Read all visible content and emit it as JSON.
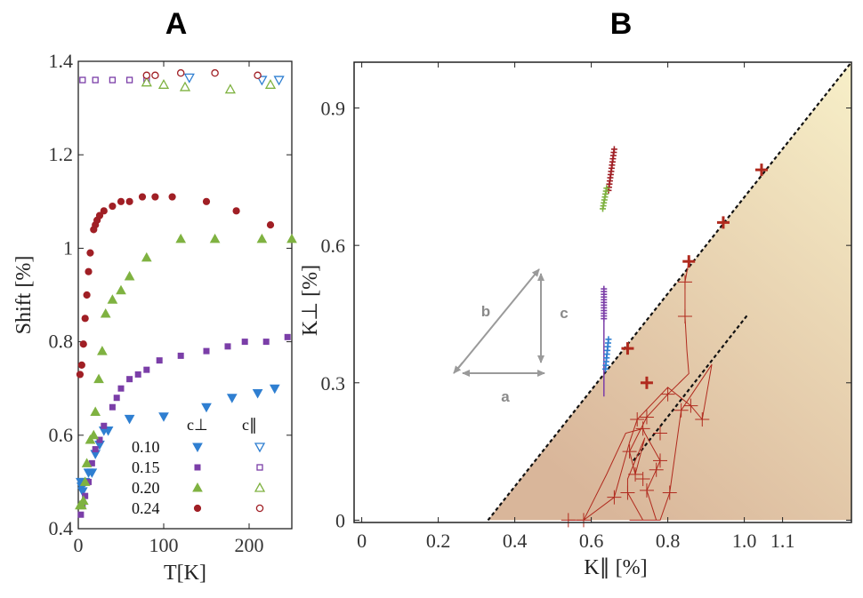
{
  "colors": {
    "x010": "#2f7fd1",
    "x015": "#7b3ea8",
    "x020": "#7fb241",
    "x024": "#a01f25",
    "frame": "#222222",
    "arrow": "#9a9a9a",
    "cross": "#b02a1e",
    "fill_top": "#f7efc8",
    "fill_bottom": "#d9b69a"
  },
  "panels": {
    "a_label": "A",
    "b_label": "B"
  },
  "chart_data": [
    {
      "type": "scatter",
      "panel": "A",
      "xlabel": "T[K]",
      "ylabel": "Shift [%]",
      "xlim": [
        0,
        250
      ],
      "ylim": [
        0.4,
        1.4
      ],
      "xticks": [
        0,
        100,
        200
      ],
      "xtick_labels": [
        "0",
        "100",
        "200"
      ],
      "yticks": [
        0.4,
        0.6,
        0.8,
        1.0,
        1.2,
        1.4
      ],
      "ytick_labels": [
        "0.4",
        "0.6",
        "0.8",
        "1",
        "1.2",
        "1.4"
      ],
      "legend": {
        "col_perp": "c⊥",
        "col_par": "c∥",
        "rows": [
          {
            "label": "0.10",
            "color_key": "x010"
          },
          {
            "label": "0.15",
            "color_key": "x015"
          },
          {
            "label": "0.20",
            "color_key": "x020"
          },
          {
            "label": "0.24",
            "color_key": "x024"
          }
        ]
      },
      "series": [
        {
          "name": "0.10 c⊥",
          "marker": "tri-down",
          "filled": true,
          "color_key": "x010",
          "x": [
            3,
            4,
            5,
            8,
            12,
            16,
            20,
            25,
            30,
            35,
            60,
            100,
            150,
            180,
            210,
            230
          ],
          "y": [
            0.5,
            0.49,
            0.48,
            0.5,
            0.52,
            0.52,
            0.56,
            0.58,
            0.61,
            0.61,
            0.635,
            0.64,
            0.66,
            0.68,
            0.69,
            0.7
          ]
        },
        {
          "name": "0.15 c⊥",
          "marker": "square",
          "filled": true,
          "color_key": "x015",
          "x": [
            3,
            5,
            8,
            12,
            16,
            20,
            25,
            30,
            40,
            45,
            50,
            60,
            70,
            80,
            95,
            120,
            150,
            175,
            195,
            220,
            245
          ],
          "y": [
            0.43,
            0.45,
            0.47,
            0.5,
            0.54,
            0.57,
            0.59,
            0.62,
            0.66,
            0.68,
            0.7,
            0.72,
            0.73,
            0.74,
            0.76,
            0.77,
            0.78,
            0.79,
            0.8,
            0.8,
            0.81
          ]
        },
        {
          "name": "0.20 c⊥",
          "marker": "tri-up",
          "filled": true,
          "color_key": "x020",
          "x": [
            2,
            4,
            6,
            8,
            10,
            14,
            18,
            20,
            24,
            28,
            32,
            40,
            50,
            60,
            80,
            120,
            160,
            215,
            250
          ],
          "y": [
            0.45,
            0.45,
            0.46,
            0.5,
            0.54,
            0.59,
            0.6,
            0.65,
            0.72,
            0.78,
            0.86,
            0.89,
            0.91,
            0.94,
            0.98,
            1.02,
            1.02,
            1.02,
            1.02
          ]
        },
        {
          "name": "0.24 c⊥",
          "marker": "circle",
          "filled": true,
          "color_key": "x024",
          "x": [
            2,
            4,
            6,
            8,
            10,
            12,
            14,
            18,
            20,
            22,
            25,
            30,
            40,
            50,
            60,
            75,
            90,
            110,
            150,
            185,
            225
          ],
          "y": [
            0.73,
            0.75,
            0.795,
            0.85,
            0.9,
            0.95,
            0.99,
            1.04,
            1.05,
            1.06,
            1.07,
            1.08,
            1.09,
            1.1,
            1.1,
            1.11,
            1.11,
            1.11,
            1.1,
            1.08,
            1.05
          ]
        },
        {
          "name": "0.10 c∥",
          "marker": "tri-down",
          "filled": false,
          "color_key": "x010",
          "x": [
            130,
            215,
            235
          ],
          "y": [
            1.365,
            1.36,
            1.36
          ]
        },
        {
          "name": "0.15 c∥",
          "marker": "square",
          "filled": false,
          "color_key": "x015",
          "x": [
            5,
            20,
            40,
            60,
            80
          ],
          "y": [
            1.36,
            1.36,
            1.36,
            1.36,
            1.36
          ]
        },
        {
          "name": "0.20 c∥",
          "marker": "tri-up",
          "filled": false,
          "color_key": "x020",
          "x": [
            80,
            100,
            125,
            178,
            225
          ],
          "y": [
            1.355,
            1.35,
            1.345,
            1.34,
            1.35
          ]
        },
        {
          "name": "0.24 c∥",
          "marker": "circle",
          "filled": false,
          "color_key": "x024",
          "x": [
            80,
            90,
            120,
            160,
            210
          ],
          "y": [
            1.37,
            1.37,
            1.375,
            1.375,
            1.37
          ]
        }
      ]
    },
    {
      "type": "scatter",
      "panel": "B",
      "xlabel": "K∥ [%]",
      "ylabel": "K⊥ [%]",
      "xlim": [
        -0.02,
        1.28
      ],
      "ylim": [
        -0.005,
        1.0
      ],
      "xticks": [
        0,
        0.2,
        0.4,
        0.6,
        0.8,
        1.0
      ],
      "xtick_labels": [
        "0",
        "0.2",
        "0.4",
        "0.6",
        "0.8",
        "1.0"
      ],
      "xtick_labels_unlabeled": [
        1.1
      ],
      "xtick_label_extra": "1.1",
      "yticks": [
        0,
        0.3,
        0.6,
        0.9
      ],
      "ytick_labels": [
        "0",
        "0.3",
        "0.6",
        "0.9"
      ],
      "dashed_lines": [
        {
          "x": [
            0.33,
            1.28
          ],
          "y": [
            0.0,
            1.0
          ]
        },
        {
          "x": [
            0.71,
            1.01
          ],
          "y": [
            0.13,
            0.45
          ]
        }
      ],
      "shaded_region": {
        "description": "below main dashed line",
        "vertices_x": [
          0.33,
          1.28,
          1.28
        ],
        "vertices_y": [
          0.0,
          1.0,
          0.0
        ]
      },
      "clusters": [
        {
          "name": "0.24",
          "color_key": "x024",
          "x_center": 0.645,
          "y_from": 0.72,
          "y_to": 0.81,
          "x_shift": 0.015,
          "count": 14
        },
        {
          "name": "0.20",
          "color_key": "x020",
          "x_center": 0.63,
          "y_from": 0.68,
          "y_to": 0.725,
          "x_shift": 0.01,
          "count": 8
        },
        {
          "name": "0.15",
          "color_key": "x015",
          "x_center": 0.633,
          "y_from": 0.44,
          "y_to": 0.505,
          "x_shift": 0.0,
          "count": 12
        },
        {
          "name": "0.10",
          "color_key": "x010",
          "x_center": 0.637,
          "y_from": 0.33,
          "y_to": 0.395,
          "x_shift": 0.008,
          "count": 9
        }
      ],
      "vertical_spike": {
        "x": 0.633,
        "y_from": 0.27,
        "y_to": 0.44,
        "color_key": "x015"
      },
      "bold_crosses": {
        "color_key": "cross",
        "x": [
          0.695,
          0.745,
          0.855,
          0.945,
          1.045
        ],
        "y": [
          0.375,
          0.3,
          0.565,
          0.65,
          0.765
        ]
      },
      "thin_path": {
        "color_key": "cross",
        "x": [
          0.855,
          0.845,
          0.845,
          0.85,
          0.855,
          0.8,
          0.745,
          0.7,
          0.715,
          0.74,
          0.695,
          0.695,
          0.735,
          0.78,
          0.805,
          0.835,
          0.915,
          0.89,
          0.86,
          0.8,
          0.72,
          0.7,
          0.66,
          0.58,
          0.54,
          0.58,
          0.64,
          0.69,
          0.735,
          0.74,
          0.78,
          0.77,
          0.745,
          0.77,
          0.735,
          0.7
        ],
        "y": [
          0.565,
          0.52,
          0.445,
          0.37,
          0.32,
          0.275,
          0.225,
          0.15,
          0.1,
          0.18,
          0.09,
          0.06,
          0.0,
          0.0,
          0.06,
          0.24,
          0.34,
          0.22,
          0.25,
          0.29,
          0.22,
          0.17,
          0.05,
          0.0,
          0.0,
          0.0,
          0.1,
          0.19,
          0.2,
          0.19,
          0.13,
          0.11,
          0.065,
          0.0,
          0.0,
          0.0
        ]
      },
      "thin_crosses": {
        "x": [
          0.845,
          0.845,
          0.8,
          0.745,
          0.715,
          0.7,
          0.695,
          0.735,
          0.78,
          0.805,
          0.835,
          0.89,
          0.86,
          0.72,
          0.66,
          0.58,
          0.54,
          0.735,
          0.78,
          0.77,
          0.745
        ],
        "y": [
          0.52,
          0.445,
          0.275,
          0.225,
          0.1,
          0.15,
          0.06,
          0.2,
          0.13,
          0.06,
          0.24,
          0.22,
          0.25,
          0.22,
          0.05,
          0.0,
          0.0,
          0.09,
          0.19,
          0.11,
          0.065
        ]
      },
      "inset_arrows": {
        "labels": {
          "a": "a",
          "b": "b",
          "c": "c"
        }
      }
    }
  ]
}
